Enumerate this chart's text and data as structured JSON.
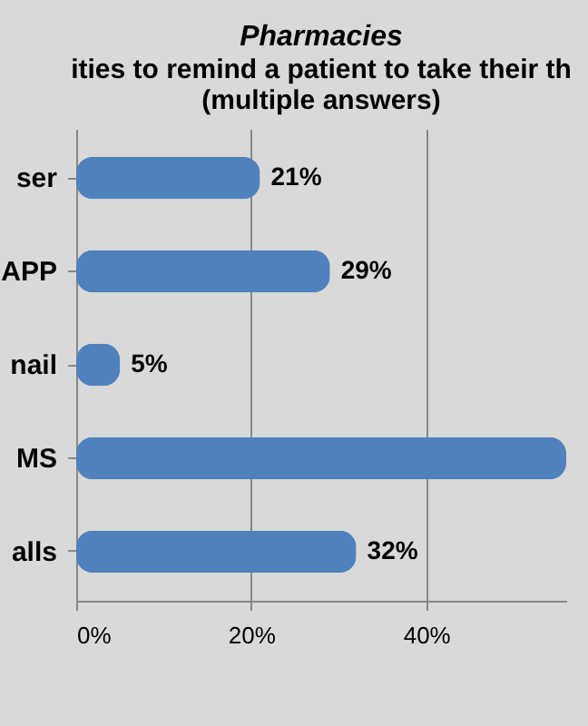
{
  "chart_data": {
    "type": "bar",
    "orientation": "horizontal",
    "title": "Pharmacies",
    "subtitle": "ities to remind a patient to take their th\n(multiple answers)",
    "categories": [
      "ser",
      "APP",
      "nail",
      "MS",
      "alls"
    ],
    "values": [
      21,
      29,
      5,
      56,
      32
    ],
    "value_labels": [
      "21%",
      "29%",
      "5%",
      null,
      "32%"
    ],
    "color": "#4f81bd",
    "xlim": [
      0,
      56
    ],
    "xticks": [
      {
        "value": 0,
        "label": "0%"
      },
      {
        "value": 20,
        "label": "20%"
      },
      {
        "value": 40,
        "label": "40%"
      }
    ],
    "grid": "x"
  }
}
